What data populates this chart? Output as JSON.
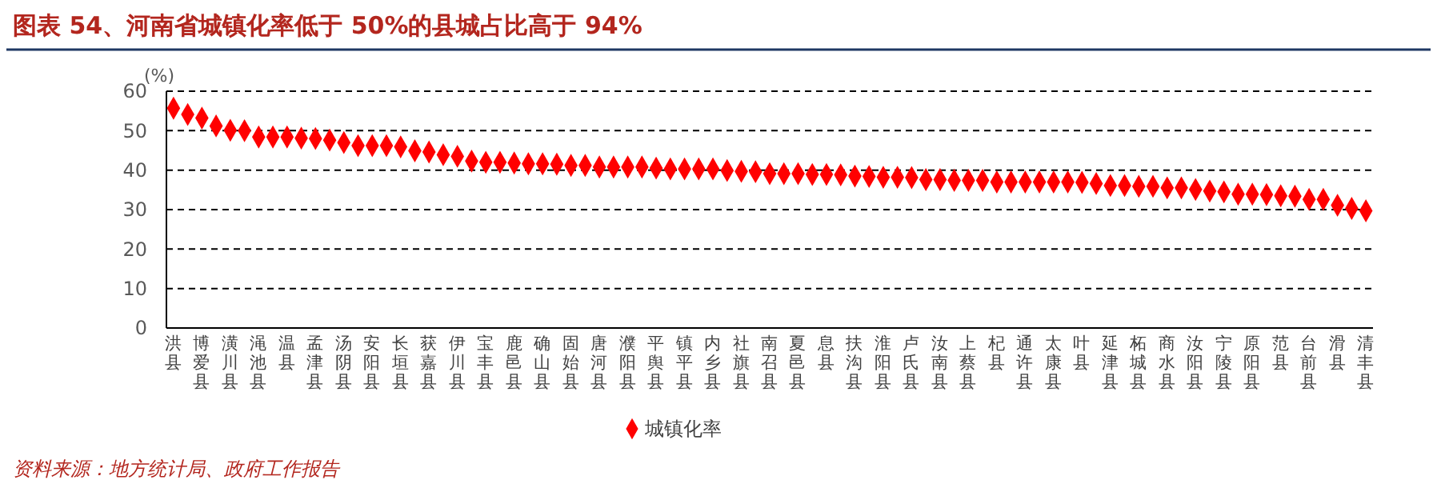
{
  "chart_data": {
    "type": "scatter",
    "title": "图表 54、河南省城镇化率低于 50%的县城占比高于 94%",
    "ylabel": "(%)",
    "annotations": [
      "资料来源：地方统计局、政府工作报告"
    ],
    "categories": [
      "洪县",
      null,
      "博爱县",
      null,
      "潢川县",
      null,
      "渑池县",
      null,
      "温县",
      null,
      "孟津县",
      null,
      "汤阴县",
      null,
      "安阳县",
      null,
      "长垣县",
      null,
      "获嘉县",
      null,
      "伊川县",
      null,
      "宝丰县",
      null,
      "鹿邑县",
      null,
      "确山县",
      null,
      "固始县",
      null,
      "唐河县",
      null,
      "濮阳县",
      null,
      "平舆县",
      null,
      "镇平县",
      null,
      "内乡县",
      null,
      "社旗县",
      null,
      "南召县",
      null,
      "夏邑县",
      null,
      "息县",
      null,
      "扶沟县",
      null,
      "淮阳县",
      null,
      "卢氏县",
      null,
      "汝南县",
      null,
      "上蔡县",
      null,
      "杞县",
      null,
      "通许县",
      null,
      "太康县",
      null,
      "叶县",
      null,
      "延津县",
      null,
      "柘城县",
      null,
      "商水县",
      null,
      "汝阳县",
      null,
      "宁陵县",
      null,
      "原阳县",
      null,
      "范县",
      null,
      "台前县",
      null,
      "滑县",
      null,
      "清丰县"
    ],
    "series": [
      {
        "name": "城镇化率",
        "color": "#ff0000",
        "values": [
          55.7,
          54.1,
          53.2,
          51.2,
          50.1,
          50.0,
          48.4,
          48.4,
          48.4,
          48.1,
          48.0,
          47.6,
          47.0,
          46.2,
          46.2,
          46.2,
          45.9,
          44.9,
          44.6,
          43.9,
          43.5,
          42.3,
          42.0,
          42.0,
          41.8,
          41.6,
          41.6,
          41.5,
          41.2,
          41.2,
          40.8,
          40.8,
          40.8,
          40.8,
          40.5,
          40.3,
          40.3,
          40.3,
          40.3,
          39.9,
          39.7,
          39.6,
          39.1,
          39.1,
          39.1,
          38.9,
          38.9,
          38.8,
          38.5,
          38.4,
          38.2,
          38.2,
          38.1,
          37.6,
          37.6,
          37.4,
          37.4,
          37.4,
          37.0,
          37.0,
          37.0,
          37.0,
          37.0,
          37.0,
          36.9,
          36.6,
          36.1,
          36.1,
          35.9,
          35.9,
          35.5,
          35.5,
          35.1,
          34.7,
          34.5,
          33.9,
          33.9,
          33.8,
          33.5,
          33.4,
          32.6,
          32.6,
          31.1,
          30.3,
          29.7
        ]
      }
    ],
    "ylim": [
      0,
      60
    ],
    "yticks": [
      0,
      10,
      20,
      30,
      40,
      50,
      60
    ],
    "grid": "y",
    "legend": "bottom",
    "marker": "diamond"
  }
}
